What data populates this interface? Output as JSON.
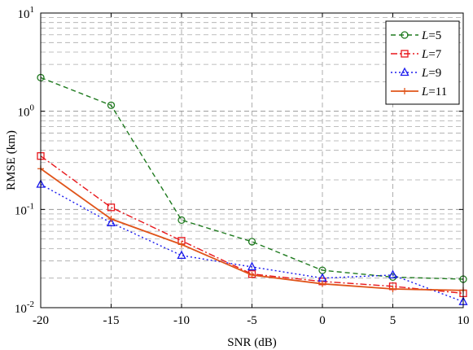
{
  "chart_data": {
    "type": "line",
    "xlabel": "SNR (dB)",
    "ylabel": "RMSE (km)",
    "x": [
      -20,
      -15,
      -10,
      -5,
      0,
      5,
      10
    ],
    "x_tick_labels": [
      "-20",
      "-15",
      "-10",
      "-5",
      "0",
      "5",
      "10"
    ],
    "xlim": [
      -20,
      10
    ],
    "yscale": "log",
    "ylim": [
      0.01,
      10
    ],
    "y_ticks": [
      {
        "base": "10",
        "exp": "1",
        "value": 10
      },
      {
        "base": "10",
        "exp": "0",
        "value": 1
      },
      {
        "base": "10",
        "exp": "-1",
        "value": 0.1
      },
      {
        "base": "10",
        "exp": "-2",
        "value": 0.01
      }
    ],
    "grid": true,
    "legend_position": "top-right",
    "series": [
      {
        "name": "L=5",
        "legend_var": "L",
        "legend_val": "=5",
        "color": "#1f7a1f",
        "dash": "6,4",
        "marker": "circle",
        "values": [
          2.2,
          1.15,
          0.078,
          0.047,
          0.024,
          0.0205,
          0.0195
        ]
      },
      {
        "name": "L=7",
        "legend_var": "L",
        "legend_val": "=7",
        "color": "#e8161b",
        "dash": "8,3,2,3",
        "marker": "square",
        "values": [
          0.35,
          0.105,
          0.048,
          0.022,
          0.0185,
          0.0165,
          0.014
        ]
      },
      {
        "name": "L=9",
        "legend_var": "L",
        "legend_val": "=9",
        "color": "#1a1aee",
        "dash": "2,3",
        "marker": "triangle",
        "values": [
          0.18,
          0.073,
          0.034,
          0.026,
          0.02,
          0.0215,
          0.0115
        ]
      },
      {
        "name": "L=11",
        "legend_var": "L",
        "legend_val": "=11",
        "color": "#e0541a",
        "dash": "",
        "marker": "plus",
        "values": [
          0.26,
          0.08,
          0.044,
          0.0215,
          0.0175,
          0.0155,
          0.015
        ]
      }
    ]
  }
}
